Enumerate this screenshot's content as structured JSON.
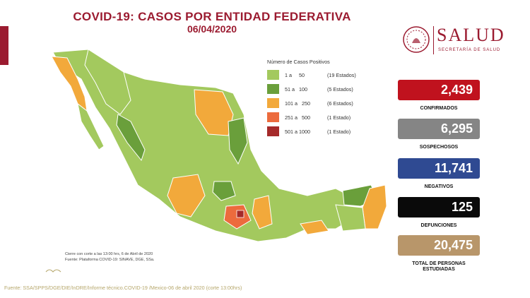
{
  "header": {
    "title": "COVID-19: CASOS POR ENTIDAD FEDERATIVA",
    "date": "06/04/2020"
  },
  "logo": {
    "wordmark": "SALUD",
    "subtitle": "SECRETARÍA DE SALUD"
  },
  "legend": {
    "title": "Número de Casos Positivos",
    "items": [
      {
        "range": "1 a     50",
        "count": "(19 Estados)",
        "color": "#a3c95e"
      },
      {
        "range": "51 a   100",
        "count": "(5 Estados)",
        "color": "#6a9f3b"
      },
      {
        "range": "101 a   250",
        "count": "(6 Estados)",
        "color": "#f2a93b"
      },
      {
        "range": "251 a   500",
        "count": "(1 Estado)",
        "color": "#ec6b3d"
      },
      {
        "range": "501 a 1000",
        "count": "(1 Estado)",
        "color": "#a52a2a"
      }
    ]
  },
  "stats": [
    {
      "value": "2,439",
      "label": "CONFIRMADOS",
      "color": "#c0121e"
    },
    {
      "value": "6,295",
      "label": "SOSPECHOSOS",
      "color": "#858585"
    },
    {
      "value": "11,741",
      "label": "NEGATIVOS",
      "color": "#2f4a92"
    },
    {
      "value": "125",
      "label": "DEFUNCIONES",
      "color": "#0a0a0a"
    },
    {
      "value": "20,475",
      "label": "TOTAL DE PERSONAS",
      "label2": "ESTUDIADAS",
      "color": "#b8966a"
    }
  ],
  "notes": {
    "cutoff": "Cierre con corte a las 13:00 hrs, 6 de Abril de 2020",
    "platform": "Fuente: Plataforma COVID-19: SINAVE, DGE, SSa."
  },
  "source": "Fuente: SSA/SPPS/DGE/DIE/InDRE/Informe técnico.COVID-19 /Mexico-06 de abril 2020 (corte 13:00hrs)"
}
